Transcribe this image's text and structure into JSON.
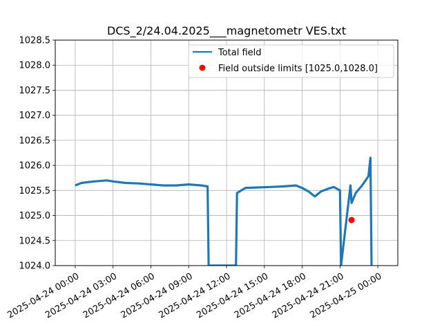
{
  "chart_data": {
    "type": "line",
    "title": "DCS_2/24.04.2025___magnetometr VES.txt",
    "xlabel": "",
    "ylabel": "",
    "ylim": [
      1024.0,
      1028.5
    ],
    "xlim": [
      "2025-04-23 22:25",
      "2025-04-25 01:35"
    ],
    "grid": true,
    "legend_position": "top-right",
    "y_ticks": [
      "1024.0",
      "1024.5",
      "1025.0",
      "1025.5",
      "1026.0",
      "1026.5",
      "1027.0",
      "1027.5",
      "1028.0",
      "1028.5"
    ],
    "x_ticks": [
      {
        "t": "2025-04-24 00:00",
        "label": "2025-04-24 00:00"
      },
      {
        "t": "2025-04-24 03:00",
        "label": "2025-04-24 03:00"
      },
      {
        "t": "2025-04-24 06:00",
        "label": "2025-04-24 06:00"
      },
      {
        "t": "2025-04-24 09:00",
        "label": "2025-04-24 09:00"
      },
      {
        "t": "2025-04-24 12:00",
        "label": "2025-04-24 12:00"
      },
      {
        "t": "2025-04-24 15:00",
        "label": "2025-04-24 15:00"
      },
      {
        "t": "2025-04-24 18:00",
        "label": "2025-04-24 18:00"
      },
      {
        "t": "2025-04-24 21:00",
        "label": "2025-04-24 21:00"
      },
      {
        "t": "2025-04-25 00:00",
        "label": "2025-04-25 00:00"
      }
    ],
    "series": [
      {
        "name": "Total field",
        "color": "#1f77b4",
        "x": [
          "2025-04-24 00:00",
          "2025-04-24 00:30",
          "2025-04-24 01:30",
          "2025-04-24 02:30",
          "2025-04-24 03:00",
          "2025-04-24 04:00",
          "2025-04-24 05:00",
          "2025-04-24 06:00",
          "2025-04-24 07:00",
          "2025-04-24 08:00",
          "2025-04-24 09:00",
          "2025-04-24 10:00",
          "2025-04-24 10:30",
          "2025-04-24 10:35",
          "2025-04-24 12:45",
          "2025-04-24 12:50",
          "2025-04-24 13:30",
          "2025-04-24 14:30",
          "2025-04-24 15:30",
          "2025-04-24 16:30",
          "2025-04-24 17:30",
          "2025-04-24 18:00",
          "2025-04-24 18:30",
          "2025-04-24 19:00",
          "2025-04-24 19:30",
          "2025-04-24 20:00",
          "2025-04-24 20:30",
          "2025-04-24 21:00",
          "2025-04-24 21:05",
          "2025-04-24 21:50",
          "2025-04-24 21:55",
          "2025-04-24 22:15",
          "2025-04-24 22:45",
          "2025-04-24 23:15",
          "2025-04-24 23:25",
          "2025-04-24 23:30"
        ],
        "y": [
          1025.6,
          1025.65,
          1025.68,
          1025.7,
          1025.68,
          1025.65,
          1025.64,
          1025.62,
          1025.6,
          1025.6,
          1025.62,
          1025.6,
          1025.58,
          1024.0,
          1024.0,
          1025.45,
          1025.55,
          1025.56,
          1025.57,
          1025.58,
          1025.6,
          1025.55,
          1025.48,
          1025.38,
          1025.48,
          1025.53,
          1025.57,
          1025.5,
          1024.0,
          1025.6,
          1025.25,
          1025.45,
          1025.6,
          1025.78,
          1026.15,
          1024.0
        ]
      },
      {
        "name": "Field outside limits [1025.0,1028.0]",
        "color": "#ff0000",
        "type": "scatter",
        "x": [
          "2025-04-24 21:55"
        ],
        "y": [
          1024.91
        ]
      }
    ]
  }
}
